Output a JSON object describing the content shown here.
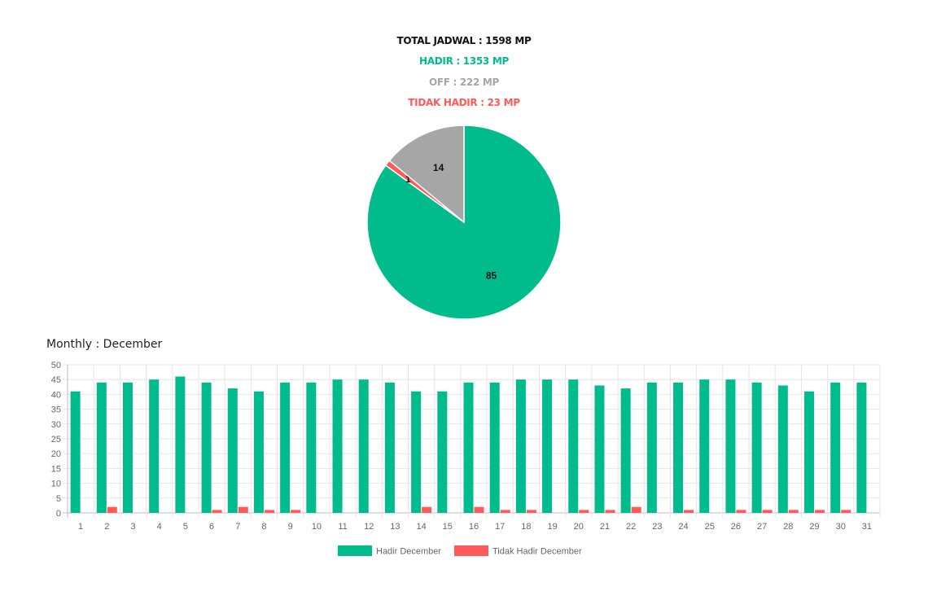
{
  "summary": {
    "total": "TOTAL JADWAL : 1598 MP",
    "hadir": "HADIR : 1353 MP",
    "off": "OFF : 222 MP",
    "tidak_hadir": "TIDAK HADIR : 23 MP"
  },
  "colors": {
    "hadir": "#00bc8c",
    "off": "#a6a6a6",
    "tidak_hadir": "#ff5a5a"
  },
  "monthly_title": "Monthly : December",
  "chart_data": [
    {
      "type": "pie",
      "slices": [
        {
          "label": "85",
          "value": 85,
          "color": "#00bc8c"
        },
        {
          "label": "1",
          "value": 1,
          "color": "#ff5a5a"
        },
        {
          "label": "14",
          "value": 14,
          "color": "#a6a6a6"
        }
      ]
    },
    {
      "type": "bar",
      "title": "Monthly : December",
      "categories": [
        "1",
        "2",
        "3",
        "4",
        "5",
        "6",
        "7",
        "8",
        "9",
        "10",
        "11",
        "12",
        "13",
        "14",
        "15",
        "16",
        "17",
        "18",
        "19",
        "20",
        "21",
        "22",
        "23",
        "24",
        "25",
        "26",
        "27",
        "28",
        "29",
        "30",
        "31"
      ],
      "ylim": [
        0,
        50
      ],
      "yticks": [
        0,
        5,
        10,
        15,
        20,
        25,
        30,
        35,
        40,
        45,
        50
      ],
      "grid": true,
      "legend_position": "bottom",
      "series": [
        {
          "name": "Hadir December",
          "color": "#00bc8c",
          "values": [
            41,
            44,
            44,
            45,
            46,
            44,
            42,
            41,
            44,
            44,
            45,
            45,
            44,
            41,
            41,
            44,
            44,
            45,
            45,
            45,
            43,
            42,
            44,
            44,
            45,
            45,
            44,
            43,
            41,
            44,
            44
          ]
        },
        {
          "name": "Tidak Hadir December",
          "color": "#ff5a5a",
          "values": [
            0,
            2,
            0,
            0,
            0,
            1,
            2,
            1,
            1,
            0,
            0,
            0,
            0,
            2,
            0,
            2,
            1,
            1,
            0,
            1,
            1,
            2,
            0,
            1,
            0,
            1,
            1,
            1,
            1,
            1,
            0
          ]
        }
      ]
    }
  ]
}
